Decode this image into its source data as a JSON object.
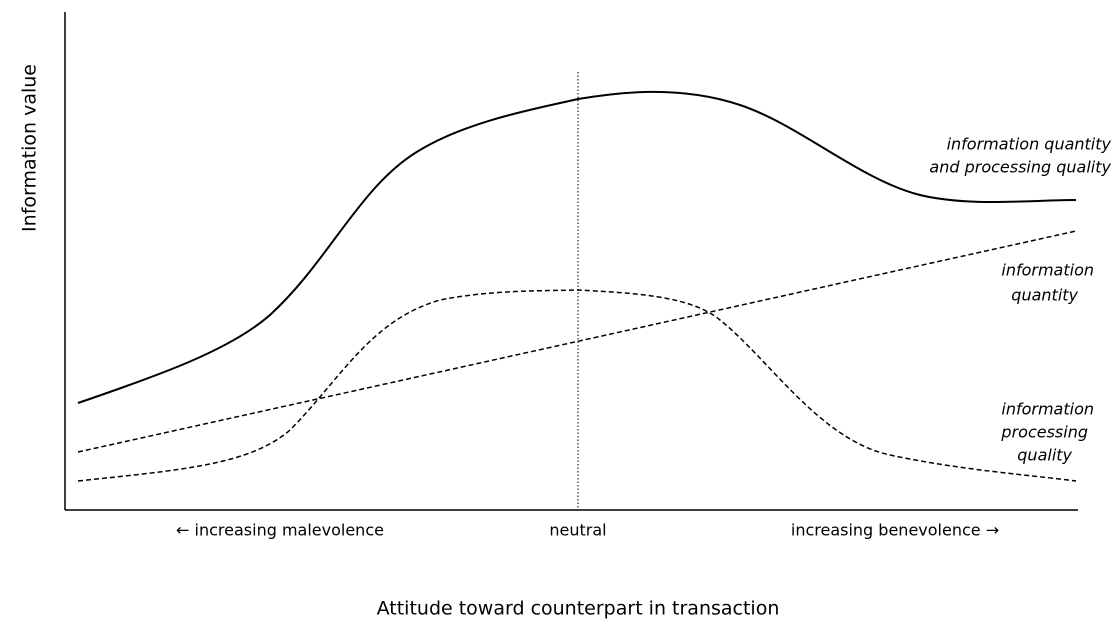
{
  "axes": {
    "y_label": "Information value",
    "x_label": "Attitude toward counterpart in transaction",
    "x_markers": [
      "← increasing malevolence",
      "neutral",
      "increasing benevolence →"
    ]
  },
  "curves": [
    {
      "label": [
        "information quantity",
        "and processing quality"
      ]
    },
    {
      "label": [
        "information",
        "quantity"
      ]
    },
    {
      "label": [
        "information",
        "processing",
        "quality"
      ]
    }
  ]
}
